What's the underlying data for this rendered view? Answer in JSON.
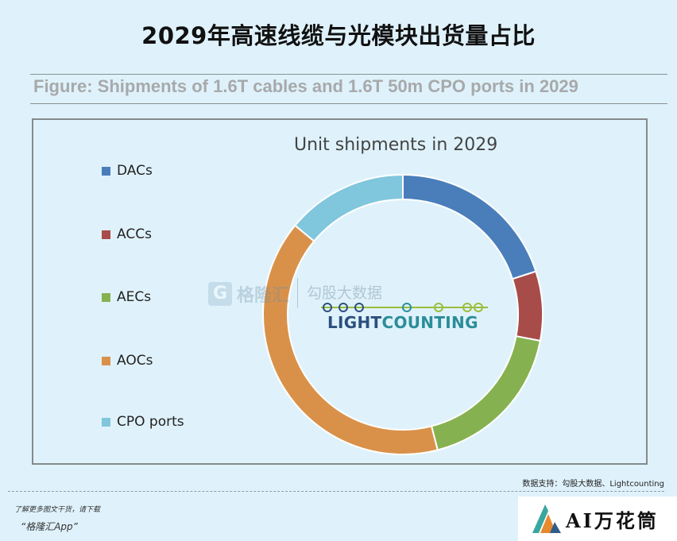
{
  "page": {
    "title": "2029年高速线缆与光模块出货量占比",
    "figure_caption": "Figure: Shipments of 1.6T cables and 1.6T 50m CPO ports in 2029",
    "source_note": "数据支持：勾股大数据、Lightcounting",
    "footer_line1": "了解更多图文干货，请下载",
    "footer_line2": "“格隆汇App”",
    "brand": "AI万花筒"
  },
  "watermarks": {
    "gelonghui_mark": "G",
    "gelonghui_name": "格隆汇",
    "gougu": "勾股大数据",
    "lc_light": "LIGHT",
    "lc_counting": "COUNTING"
  },
  "chart_data": {
    "type": "pie",
    "title": "Unit shipments in 2029",
    "legend_position": "left",
    "donut": true,
    "categories": [
      "DACs",
      "ACCs",
      "AECs",
      "AOCs",
      "CPO ports"
    ],
    "values": [
      20,
      8,
      18,
      40,
      14
    ],
    "colors": [
      "#4a7ebb",
      "#a84c49",
      "#86b150",
      "#d9914a",
      "#80c6dd"
    ]
  }
}
